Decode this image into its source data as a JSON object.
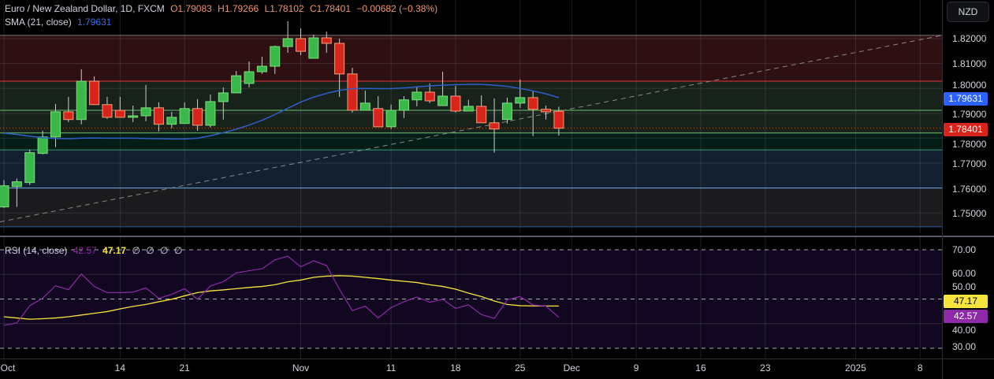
{
  "header": {
    "symbol": "Euro / New Zealand Dollar, 1D, FXCM",
    "open": "O1.79083",
    "high": "H1.79266",
    "low": "L1.78102",
    "close": "C1.78401",
    "change": "−0.00682 (−0.38%)"
  },
  "sma_legend": {
    "label": "SMA (21, close)",
    "value": "1.79631"
  },
  "rsi_legend": {
    "label": "RSI (14, close)",
    "rsi": "42.57",
    "ma": "47.17",
    "extras": [
      "∅",
      "∅",
      "∅",
      "∅"
    ]
  },
  "currency_button": "NZD",
  "price_axis": [
    "1.82000",
    "1.81000",
    "1.80000",
    "1.79000",
    "1.78000",
    "1.77000",
    "1.76000",
    "1.75000"
  ],
  "price_tags": {
    "sma": "1.79631",
    "last": "1.78401"
  },
  "rsi_axis": [
    "70.00",
    "60.00",
    "50.00",
    "40.00",
    "30.00"
  ],
  "rsi_tags": {
    "ma": "47.17",
    "rsi": "42.57"
  },
  "x_axis": [
    {
      "label": "Oct",
      "index": 0
    },
    {
      "label": "14",
      "index": 9
    },
    {
      "label": "21",
      "index": 14
    },
    {
      "label": "Nov",
      "index": 23
    },
    {
      "label": "11",
      "index": 30
    },
    {
      "label": "18",
      "index": 35
    },
    {
      "label": "25",
      "index": 40
    },
    {
      "label": "Dec",
      "index": 44
    },
    {
      "label": "9",
      "index": 49
    },
    {
      "label": "16",
      "index": 54
    },
    {
      "label": "23",
      "index": 59
    },
    {
      "label": "2025",
      "index": 66
    },
    {
      "label": "8",
      "index": 71
    }
  ],
  "colors": {
    "up": "#3bb84a",
    "down": "#d9241c",
    "sma": "#2f5fc9",
    "rsi": "#8e2aa8",
    "rsi_ma": "#f7e43d",
    "tag_blue": "#2962ff",
    "tag_red": "#d9241c",
    "tag_yellow": "#f7e43d",
    "tag_purple": "#8e2aa8"
  },
  "chart_data": {
    "type": "candlestick",
    "ohlc": [
      [
        1.7524,
        1.7631,
        1.752,
        1.7609
      ],
      [
        1.7606,
        1.7638,
        1.7524,
        1.7625
      ],
      [
        1.7622,
        1.7754,
        1.7612,
        1.7742
      ],
      [
        1.7739,
        1.783,
        1.7735,
        1.7805
      ],
      [
        1.7805,
        1.7938,
        1.7764,
        1.7906
      ],
      [
        1.7906,
        1.7966,
        1.7865,
        1.7875
      ],
      [
        1.7875,
        1.8077,
        1.7856,
        1.8029
      ],
      [
        1.8029,
        1.8048,
        1.7935,
        1.7935
      ],
      [
        1.7935,
        1.7966,
        1.7878,
        1.7884
      ],
      [
        1.7912,
        1.7966,
        1.7884,
        1.7884
      ],
      [
        1.7884,
        1.7931,
        1.7865,
        1.789
      ],
      [
        1.789,
        1.8014,
        1.7868,
        1.7922
      ],
      [
        1.7922,
        1.7944,
        1.7827,
        1.7856
      ],
      [
        1.7856,
        1.7906,
        1.784,
        1.7884
      ],
      [
        1.7859,
        1.7944,
        1.7859,
        1.7919
      ],
      [
        1.7919,
        1.7957,
        1.783,
        1.7852
      ],
      [
        1.7852,
        1.7976,
        1.7843,
        1.7947
      ],
      [
        1.7947,
        1.8004,
        1.7875,
        1.7982
      ],
      [
        1.7982,
        1.807,
        1.7982,
        1.8051
      ],
      [
        1.802,
        1.8108,
        1.8004,
        1.8067
      ],
      [
        1.8067,
        1.8127,
        1.8058,
        1.8089
      ],
      [
        1.8089,
        1.8172,
        1.8058,
        1.8168
      ],
      [
        1.8168,
        1.827,
        1.8143,
        1.82
      ],
      [
        1.82,
        1.8241,
        1.8134,
        1.8149
      ],
      [
        1.8121,
        1.8216,
        1.8121,
        1.8203
      ],
      [
        1.8203,
        1.8228,
        1.8143,
        1.8181
      ],
      [
        1.8181,
        1.82,
        1.7966,
        1.8058
      ],
      [
        1.8058,
        1.8083,
        1.7903,
        1.7912
      ],
      [
        1.7912,
        1.7991,
        1.7912,
        1.7941
      ],
      [
        1.7919,
        1.7969,
        1.7846,
        1.7846
      ],
      [
        1.7846,
        1.7935,
        1.7837,
        1.7912
      ],
      [
        1.7912,
        1.7969,
        1.7881,
        1.7954
      ],
      [
        1.7954,
        1.8004,
        1.7928,
        1.7985
      ],
      [
        1.7985,
        1.802,
        1.7941,
        1.795
      ],
      [
        1.7931,
        1.8067,
        1.7931,
        1.7969
      ],
      [
        1.7969,
        1.801,
        1.7903,
        1.7909
      ],
      [
        1.7909,
        1.7954,
        1.7909,
        1.7928
      ],
      [
        1.7928,
        1.7972,
        1.7862,
        1.7862
      ],
      [
        1.7862,
        1.796,
        1.7742,
        1.7837
      ],
      [
        1.7875,
        1.7963,
        1.7859,
        1.7941
      ],
      [
        1.7941,
        1.8036,
        1.7922,
        1.7963
      ],
      [
        1.7963,
        1.7988,
        1.7808,
        1.7916
      ],
      [
        1.7916,
        1.7931,
        1.7875,
        1.7906
      ],
      [
        1.79083,
        1.79266,
        1.78102,
        1.78401
      ]
    ],
    "sma21": [
      1.782,
      1.7815,
      1.7808,
      1.7802,
      1.7799,
      1.7798,
      1.78,
      1.7801,
      1.78,
      1.78,
      1.78,
      1.7799,
      1.7798,
      1.7797,
      1.7797,
      1.78,
      1.781,
      1.7822,
      1.7836,
      1.7853,
      1.7872,
      1.7895,
      1.792,
      1.7945,
      1.7965,
      1.798,
      1.7992,
      1.7999,
      1.8,
      1.7999,
      1.7999,
      1.8002,
      1.8006,
      1.801,
      1.8013,
      1.8015,
      1.8016,
      1.8016,
      1.8013,
      1.8008,
      1.8,
      1.799,
      1.7978,
      1.79631
    ],
    "rsi14": [
      39.3,
      40.3,
      47.3,
      50.3,
      55.4,
      53.8,
      60.2,
      55.1,
      52.6,
      52.6,
      52.8,
      54.5,
      50.3,
      51.9,
      54.2,
      49.9,
      55.3,
      57.0,
      60.6,
      61.5,
      62.3,
      65.9,
      67.4,
      63.1,
      65.5,
      63.6,
      54.0,
      45.3,
      47.1,
      42.3,
      46.5,
      48.9,
      50.8,
      48.7,
      49.9,
      46.2,
      47.6,
      43.7,
      42.1,
      49.7,
      51.0,
      47.6,
      47.1,
      42.57
    ],
    "rsi_ma": [
      42.8,
      42.3,
      41.8,
      42.0,
      42.3,
      42.8,
      43.5,
      44.2,
      44.9,
      46.0,
      47.0,
      47.8,
      48.9,
      49.9,
      51.3,
      52.6,
      53.3,
      53.7,
      54.2,
      54.7,
      55.1,
      55.8,
      57.0,
      57.7,
      58.8,
      59.3,
      59.5,
      59.3,
      58.8,
      58.3,
      57.7,
      57.2,
      56.7,
      55.8,
      55.1,
      54.0,
      52.4,
      51.0,
      49.2,
      47.8,
      47.3,
      47.2,
      47.17,
      47.17
    ],
    "price_range": [
      1.745,
      1.8215
    ],
    "rsi_range": [
      30,
      70
    ],
    "levels": {
      "zone_top": 1.8213,
      "resistance": 1.8029,
      "mid_upper": 1.7912,
      "mid_lower": 1.7821,
      "support_1": 1.7753,
      "support_2": 1.76,
      "zone_bottom": 1.7444
    },
    "trendline": {
      "start": [
        -0.3,
        1.7464
      ],
      "end": [
        72.7,
        1.8213
      ]
    }
  }
}
